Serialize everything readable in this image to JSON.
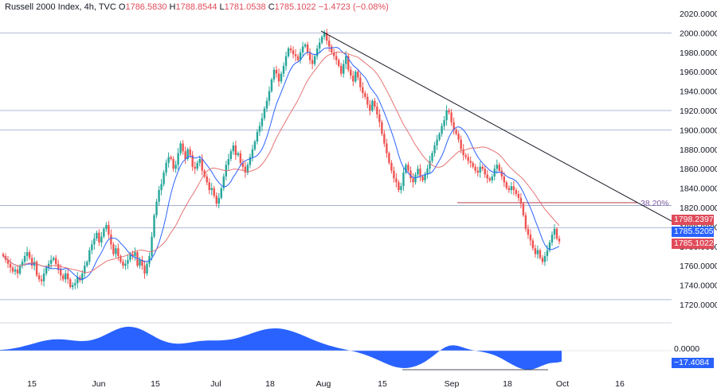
{
  "legend": {
    "symbol": "Russell 2000 Index, 4h, TVC",
    "o_label": "O",
    "o_value": "1786.5830",
    "h_label": "H",
    "h_value": "1788.8544",
    "l_label": "L",
    "l_value": "1781.0538",
    "c_label": "C",
    "c_value": "1785.1022",
    "change": "−1.4723 (−0.08%)"
  },
  "price_tags": {
    "ma_red": "1798.2397",
    "ma_blue": "1785.5205",
    "last": "1785.1022"
  },
  "osc_tags": {
    "zero": "0.0000",
    "value": "−17.4084"
  },
  "fib_label": "38.20%",
  "colors": {
    "up": "#26a69a",
    "down": "#ef5350",
    "ma_fast": "#2962ff",
    "ma_slow": "#e57373",
    "osc": "#2962ff",
    "trendline": "#131722",
    "fib": "#b02030",
    "hline": "#9aa4c8"
  },
  "chart_data": {
    "type": "candlestick",
    "title": "Russell 2000 Index, 4h, TVC",
    "price_axis": {
      "ticks": [
        "2020.0000",
        "2000.0000",
        "1980.0000",
        "1960.0000",
        "1940.0000",
        "1920.0000",
        "1900.0000",
        "1880.0000",
        "1860.0000",
        "1840.0000",
        "1820.0000",
        "1800.0000",
        "1780.0000",
        "1760.0000",
        "1740.0000",
        "1720.0000"
      ]
    },
    "x_axis": {
      "ticks": [
        "15",
        "Jun",
        "15",
        "Jul",
        "18",
        "Aug",
        "15",
        "Sep",
        "18",
        "Oct",
        "16"
      ]
    },
    "horizontal_levels": [
      2000,
      1920,
      1900,
      1822,
      1799,
      1725
    ],
    "fib_level": {
      "label": "38.20%",
      "price": 1825
    },
    "trendline": {
      "from": [
        0,
        2002
      ],
      "to": [
        1,
        1802
      ]
    },
    "closes": [
      1770,
      1766,
      1762,
      1758,
      1754,
      1756,
      1752,
      1760,
      1764,
      1770,
      1774,
      1768,
      1760,
      1764,
      1750,
      1746,
      1744,
      1752,
      1758,
      1762,
      1766,
      1768,
      1762,
      1756,
      1750,
      1746,
      1752,
      1746,
      1738,
      1740,
      1742,
      1748,
      1745,
      1752,
      1760,
      1764,
      1776,
      1782,
      1788,
      1794,
      1784,
      1790,
      1798,
      1802,
      1792,
      1782,
      1772,
      1778,
      1770,
      1764,
      1760,
      1762,
      1766,
      1772,
      1770,
      1774,
      1760,
      1766,
      1760,
      1752,
      1762,
      1770,
      1790,
      1812,
      1826,
      1838,
      1844,
      1856,
      1866,
      1872,
      1870,
      1860,
      1864,
      1876,
      1886,
      1878,
      1870,
      1880,
      1874,
      1862,
      1860,
      1866,
      1870,
      1858,
      1852,
      1846,
      1838,
      1840,
      1832,
      1824,
      1830,
      1840,
      1852,
      1864,
      1870,
      1878,
      1884,
      1874,
      1876,
      1866,
      1862,
      1856,
      1864,
      1872,
      1880,
      1888,
      1898,
      1904,
      1912,
      1922,
      1930,
      1940,
      1952,
      1962,
      1958,
      1950,
      1958,
      1966,
      1976,
      1984,
      1982,
      1978,
      1976,
      1972,
      1980,
      1986,
      1988,
      1980,
      1972,
      1968,
      1976,
      1984,
      1990,
      1996,
      2000,
      1992,
      1986,
      1980,
      1976,
      1972,
      1966,
      1958,
      1968,
      1976,
      1962,
      1956,
      1950,
      1960,
      1954,
      1944,
      1938,
      1934,
      1926,
      1920,
      1930,
      1924,
      1916,
      1908,
      1896,
      1886,
      1876,
      1866,
      1858,
      1850,
      1846,
      1838,
      1842,
      1856,
      1864,
      1858,
      1850,
      1846,
      1854,
      1860,
      1852,
      1848,
      1854,
      1860,
      1868,
      1876,
      1884,
      1890,
      1896,
      1904,
      1910,
      1920,
      1918,
      1908,
      1900,
      1896,
      1890,
      1880,
      1874,
      1872,
      1868,
      1866,
      1862,
      1858,
      1856,
      1862,
      1860,
      1854,
      1850,
      1848,
      1852,
      1860,
      1864,
      1858,
      1852,
      1846,
      1840,
      1838,
      1842,
      1838,
      1834,
      1830,
      1824,
      1812,
      1798,
      1792,
      1786,
      1778,
      1772,
      1776,
      1768,
      1764,
      1770,
      1776,
      1784,
      1792,
      1798,
      1788,
      1785
    ],
    "ma_fast_description": "short moving average (blue)",
    "ma_slow_description": "longer moving average (red)",
    "oscillator": {
      "zero_line": 0,
      "last_value": -17.4084
    }
  }
}
